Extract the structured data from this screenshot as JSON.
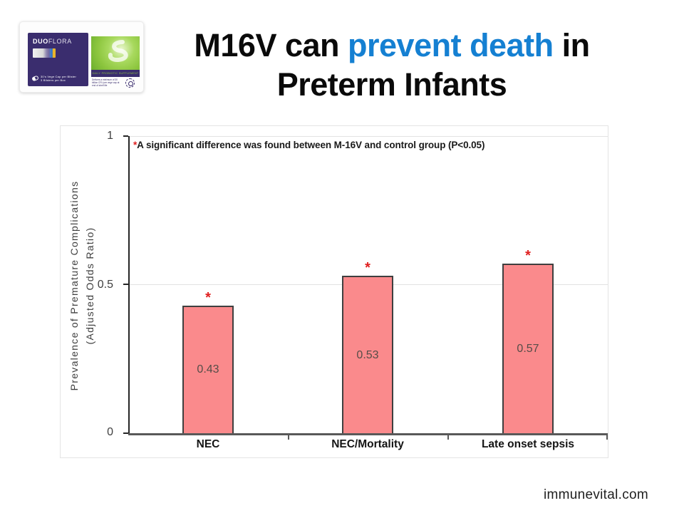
{
  "slide": {
    "title": {
      "line1_pre": "M16V can ",
      "line1_highlight": "prevent death",
      "line1_post": " in",
      "line2": "Preterm Infants"
    },
    "footer": "immunevital.com"
  },
  "product_box": {
    "brand_bold": "DUO",
    "brand_light": "FLORA",
    "pack_line1": "30's Vege Cap per Blister",
    "pack_line2": "3 Blisters per Box",
    "band_text": "DAILY PROBIOTIC SUPPLEMENT",
    "note_text": "Delivers a minimum of 30 billion CFU per vege cap at end of shelf life"
  },
  "chart_data": {
    "type": "bar",
    "categories": [
      "NEC",
      "NEC/Mortality",
      "Late onset sepsis"
    ],
    "values": [
      0.43,
      0.53,
      0.57
    ],
    "value_labels": [
      "0.43",
      "0.53",
      "0.57"
    ],
    "significance_marker": "*",
    "annotation": {
      "star": "*",
      "text": "A significant difference was found between M-16V and control group (P<0.05)"
    },
    "ylabel_line1": "Prevalence of Premature Complications",
    "ylabel_line2": "(Adjusted Odds Ratio)",
    "yticks": [
      "1",
      "0.5",
      "0"
    ],
    "ylim": [
      0,
      1
    ],
    "gridlines_at": [
      0.5,
      1
    ],
    "legend_position": "none",
    "colors": {
      "bar_fill": "#fa8a8c",
      "bar_border": "#3f3f3f",
      "star": "#e02020",
      "axis": "#595959",
      "grid": "#e2e2e2"
    }
  },
  "colors": {
    "accent_blue": "#1580d2",
    "brand_purple": "#3a2d6e",
    "brand_green": "#8dc63f"
  }
}
